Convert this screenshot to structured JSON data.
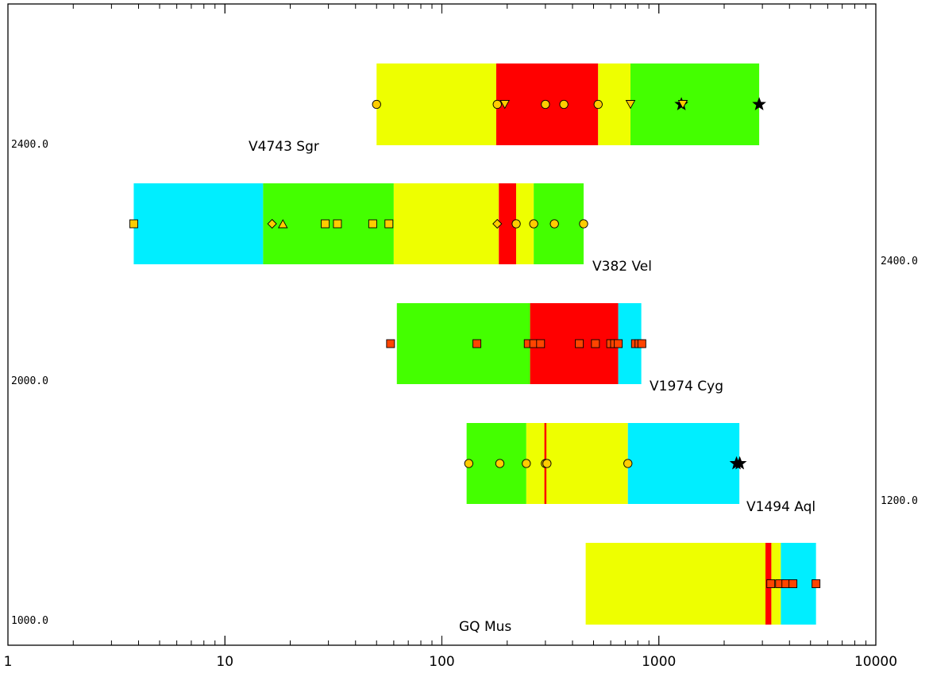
{
  "chart_data": {
    "type": "bar",
    "title": "",
    "xlabel": "",
    "ylabel": "",
    "x_scale": "log",
    "xlim": [
      1,
      10000
    ],
    "x_tick_labels": [
      "1",
      "10",
      "100",
      "1000",
      "10000"
    ],
    "grid": false,
    "legend": "none",
    "colors": {
      "yellow": "#eeff00",
      "red": "#ff0000",
      "green": "#44ff00",
      "cyan": "#00eeff",
      "marker_yellow": "#ffcc00",
      "marker_orange": "#ff4400"
    },
    "novae": [
      {
        "name": "V4743 Sgr",
        "ref_label": "2400.0",
        "ref_side": "left",
        "segments": [
          {
            "from": 50,
            "to": 178,
            "color": "yellow"
          },
          {
            "from": 178,
            "to": 525,
            "color": "red"
          },
          {
            "from": 525,
            "to": 740,
            "color": "yellow"
          },
          {
            "from": 740,
            "to": 2900,
            "color": "green"
          }
        ],
        "markers": [
          {
            "x": 50,
            "shape": "circle",
            "color": "marker_yellow"
          },
          {
            "x": 180,
            "shape": "circle",
            "color": "marker_yellow"
          },
          {
            "x": 195,
            "shape": "triangle-down",
            "color": "marker_yellow"
          },
          {
            "x": 300,
            "shape": "circle",
            "color": "marker_yellow"
          },
          {
            "x": 365,
            "shape": "circle",
            "color": "marker_yellow"
          },
          {
            "x": 525,
            "shape": "circle",
            "color": "marker_yellow"
          },
          {
            "x": 740,
            "shape": "triangle-down",
            "color": "marker_yellow"
          },
          {
            "x": 1270,
            "shape": "star",
            "color": "black"
          },
          {
            "x": 1290,
            "shape": "triangle-down",
            "color": "marker_yellow"
          },
          {
            "x": 2900,
            "shape": "star",
            "color": "black"
          }
        ]
      },
      {
        "name": "V382 Vel",
        "ref_label": "2400.0",
        "ref_side": "right",
        "segments": [
          {
            "from": 3.8,
            "to": 15,
            "color": "cyan"
          },
          {
            "from": 15,
            "to": 60,
            "color": "green"
          },
          {
            "from": 60,
            "to": 183,
            "color": "yellow"
          },
          {
            "from": 183,
            "to": 220,
            "color": "red"
          },
          {
            "from": 220,
            "to": 265,
            "color": "yellow"
          },
          {
            "from": 265,
            "to": 450,
            "color": "green"
          }
        ],
        "markers": [
          {
            "x": 3.8,
            "shape": "square",
            "color": "marker_yellow"
          },
          {
            "x": 16.5,
            "shape": "diamond",
            "color": "marker_yellow"
          },
          {
            "x": 18.5,
            "shape": "triangle-up",
            "color": "marker_yellow"
          },
          {
            "x": 29,
            "shape": "square",
            "color": "marker_yellow"
          },
          {
            "x": 33,
            "shape": "square",
            "color": "marker_yellow"
          },
          {
            "x": 48,
            "shape": "square",
            "color": "marker_yellow"
          },
          {
            "x": 57,
            "shape": "square",
            "color": "marker_yellow"
          },
          {
            "x": 180,
            "shape": "diamond",
            "color": "marker_yellow"
          },
          {
            "x": 220,
            "shape": "circle",
            "color": "marker_yellow"
          },
          {
            "x": 265,
            "shape": "circle",
            "color": "marker_yellow"
          },
          {
            "x": 330,
            "shape": "circle",
            "color": "marker_yellow"
          },
          {
            "x": 450,
            "shape": "circle",
            "color": "marker_yellow"
          }
        ]
      },
      {
        "name": "V1974 Cyg",
        "ref_label": "2000.0",
        "ref_side": "left",
        "segments": [
          {
            "from": 62,
            "to": 255,
            "color": "green"
          },
          {
            "from": 255,
            "to": 650,
            "color": "red"
          },
          {
            "from": 650,
            "to": 830,
            "color": "cyan"
          }
        ],
        "markers": [
          {
            "x": 58,
            "shape": "square",
            "color": "marker_orange"
          },
          {
            "x": 145,
            "shape": "square",
            "color": "marker_orange"
          },
          {
            "x": 250,
            "shape": "square",
            "color": "marker_orange"
          },
          {
            "x": 265,
            "shape": "square",
            "color": "marker_orange"
          },
          {
            "x": 285,
            "shape": "square",
            "color": "marker_orange"
          },
          {
            "x": 430,
            "shape": "square",
            "color": "marker_orange"
          },
          {
            "x": 510,
            "shape": "square",
            "color": "marker_orange"
          },
          {
            "x": 600,
            "shape": "square",
            "color": "marker_orange"
          },
          {
            "x": 625,
            "shape": "square",
            "color": "marker_orange"
          },
          {
            "x": 650,
            "shape": "square",
            "color": "marker_orange"
          },
          {
            "x": 780,
            "shape": "square",
            "color": "marker_orange"
          },
          {
            "x": 810,
            "shape": "square",
            "color": "marker_orange"
          },
          {
            "x": 835,
            "shape": "square",
            "color": "marker_orange"
          }
        ]
      },
      {
        "name": "V1494 Aql",
        "ref_label": "1200.0",
        "ref_side": "right",
        "segments": [
          {
            "from": 130,
            "to": 245,
            "color": "green"
          },
          {
            "from": 245,
            "to": 720,
            "color": "yellow"
          },
          {
            "from": 720,
            "to": 2350,
            "color": "cyan"
          }
        ],
        "lines": [
          {
            "x": 300,
            "color": "red"
          }
        ],
        "markers": [
          {
            "x": 133,
            "shape": "circle",
            "color": "marker_yellow"
          },
          {
            "x": 185,
            "shape": "circle",
            "color": "marker_yellow"
          },
          {
            "x": 245,
            "shape": "circle",
            "color": "marker_yellow"
          },
          {
            "x": 300,
            "shape": "circle",
            "color": "marker_yellow"
          },
          {
            "x": 305,
            "shape": "circle",
            "color": "marker_yellow"
          },
          {
            "x": 720,
            "shape": "circle",
            "color": "marker_yellow"
          },
          {
            "x": 2280,
            "shape": "star",
            "color": "black"
          },
          {
            "x": 2360,
            "shape": "star",
            "color": "black"
          }
        ]
      },
      {
        "name": "GQ Mus",
        "ref_label": "1000.0",
        "ref_side": "left",
        "segments": [
          {
            "from": 460,
            "to": 3100,
            "color": "yellow"
          },
          {
            "from": 3100,
            "to": 3300,
            "color": "red"
          },
          {
            "from": 3300,
            "to": 3650,
            "color": "yellow"
          },
          {
            "from": 3650,
            "to": 5300,
            "color": "cyan"
          }
        ],
        "markers": [
          {
            "x": 3280,
            "shape": "square",
            "color": "marker_orange"
          },
          {
            "x": 3600,
            "shape": "square",
            "color": "marker_orange"
          },
          {
            "x": 3850,
            "shape": "square",
            "color": "marker_orange"
          },
          {
            "x": 4150,
            "shape": "square",
            "color": "marker_orange"
          },
          {
            "x": 5300,
            "shape": "square",
            "color": "marker_orange"
          }
        ]
      }
    ]
  }
}
